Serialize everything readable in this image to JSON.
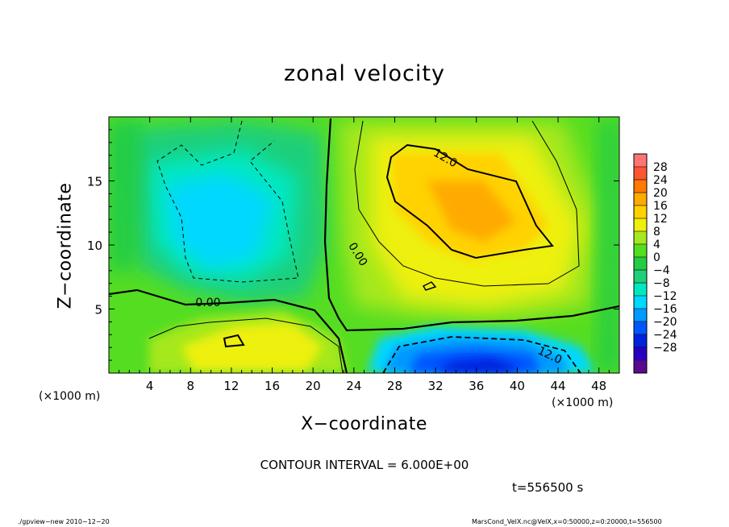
{
  "chart_data": {
    "type": "heatmap",
    "title": "zonal velocity",
    "xlabel": "X−coordinate",
    "ylabel": "Z−coordinate",
    "x_unit_label": "(×1000 m)",
    "xlim": [
      0,
      50
    ],
    "ylim": [
      0,
      20
    ],
    "x_ticks": [
      4,
      8,
      12,
      16,
      20,
      24,
      28,
      32,
      36,
      40,
      44,
      48
    ],
    "y_ticks": [
      5,
      10,
      15
    ],
    "colorbar": {
      "labels": [
        "28",
        "24",
        "20",
        "16",
        "12",
        "8",
        "4",
        "0",
        "−4",
        "−8",
        "−12",
        "−16",
        "−20",
        "−24",
        "−28"
      ],
      "colors": [
        "#5a0a8c",
        "#2a00c0",
        "#0022dd",
        "#0055ff",
        "#0099ff",
        "#00d8ff",
        "#00e8c0",
        "#1fcf7a",
        "#22cc44",
        "#55dd22",
        "#a5e81e",
        "#eef00a",
        "#ffd200",
        "#ffaa00",
        "#ff7a00",
        "#ff5530",
        "#ff7575"
      ]
    },
    "contour_labels": [
      "0.00",
      "0.00",
      "12.0",
      "12.0"
    ],
    "contour_interval": "CONTOUR INTERVAL = 6.000E+00",
    "time": "t=556500 s"
  },
  "footer": {
    "left": "./gpview−new   2010−12−20",
    "right": "MarsCond_VelX.nc@VelX,x=0:50000,z=0:20000,t=556500"
  }
}
